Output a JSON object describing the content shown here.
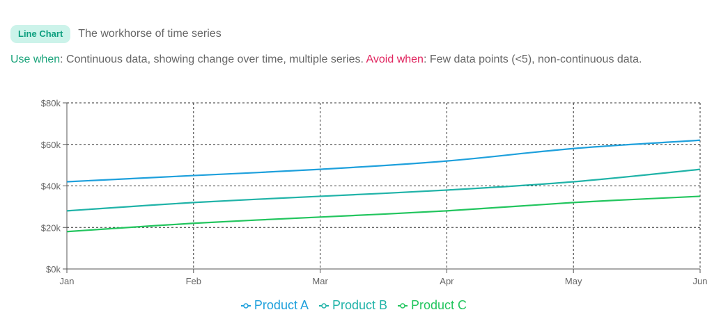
{
  "header": {
    "badge": "Line Chart",
    "subtitle": "The workhorse of time series"
  },
  "description": {
    "use_label": "Use when",
    "use_text": ": Continuous data, showing change over time, multiple series. ",
    "avoid_label": "Avoid when",
    "avoid_text": ": Few data points (<5), non-continuous data."
  },
  "chart_data": {
    "type": "line",
    "categories": [
      "Jan",
      "Feb",
      "Mar",
      "Apr",
      "May",
      "Jun"
    ],
    "y_ticks": [
      0,
      20000,
      40000,
      60000,
      80000
    ],
    "y_tick_labels": [
      "$0k",
      "$20k",
      "$40k",
      "$60k",
      "$80k"
    ],
    "ylim": [
      0,
      80000
    ],
    "grid": true,
    "legend_position": "bottom",
    "series": [
      {
        "name": "Product A",
        "color": "#1ea0dc",
        "values": [
          42000,
          45000,
          48000,
          52000,
          58000,
          62000
        ]
      },
      {
        "name": "Product B",
        "color": "#20b3a8",
        "values": [
          28000,
          32000,
          35000,
          38000,
          42000,
          48000
        ]
      },
      {
        "name": "Product C",
        "color": "#22c55e",
        "values": [
          18000,
          22000,
          25000,
          28000,
          32000,
          35000
        ]
      }
    ]
  }
}
